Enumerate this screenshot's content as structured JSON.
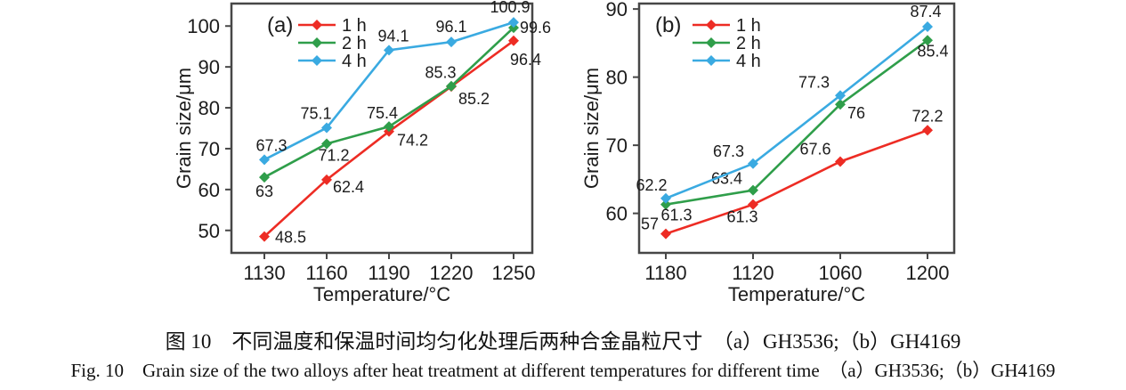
{
  "figure": {
    "caption_zh": "图 10　不同温度和保温时间均匀化处理后两种合金晶粒尺寸　（a）GH3536;（b）GH4169",
    "caption_en": "Fig. 10　Grain size of the two alloys after heat treatment at different temperatures for different time　（a）GH3536;（b）GH4169"
  },
  "colors": {
    "series_1h": "#ed2c24",
    "series_2h": "#2f9e4a",
    "series_4h": "#3aaae1",
    "axis": "#474747",
    "text": "#1c1c1c"
  },
  "chart_data": [
    {
      "type": "line",
      "panel_label": "(a)",
      "alloy": "GH3536",
      "xlabel": "Temperature/°C",
      "ylabel": "Grain size/μm",
      "categories": [
        "1130",
        "1160",
        "1190",
        "1220",
        "1250"
      ],
      "y_ticks": [
        50,
        60,
        70,
        80,
        90,
        100
      ],
      "ylim": [
        44.5,
        105.5
      ],
      "grid": false,
      "legend_position": "top-left",
      "series": [
        {
          "name": "1 h",
          "color_key": "series_1h",
          "values": [
            48.5,
            62.4,
            74.2,
            85.2,
            96.4
          ],
          "label_pos": [
            [
              "start",
              12,
              7
            ],
            [
              "start",
              7,
              14
            ],
            [
              "start",
              9,
              16
            ],
            [
              "start",
              8,
              20
            ],
            [
              "start",
              -4,
              27
            ]
          ]
        },
        {
          "name": "2 h",
          "color_key": "series_2h",
          "values": [
            63,
            71.2,
            75.4,
            85.3,
            99.6
          ],
          "label_pos": [
            [
              "middle",
              0,
              22
            ],
            [
              "middle",
              8,
              19
            ],
            [
              "end",
              10,
              -9
            ],
            [
              "middle",
              -12,
              -9
            ],
            [
              "start",
              7,
              6
            ]
          ]
        },
        {
          "name": "4 h",
          "color_key": "series_4h",
          "values": [
            67.3,
            75.1,
            94.1,
            96.1,
            100.9
          ],
          "label_pos": [
            [
              "middle",
              8,
              -10
            ],
            [
              "middle",
              -12,
              -10
            ],
            [
              "middle",
              5,
              -10
            ],
            [
              "middle",
              0,
              -11
            ],
            [
              "middle",
              -4,
              -11
            ]
          ]
        }
      ]
    },
    {
      "type": "line",
      "panel_label": "(b)",
      "alloy": "GH4169",
      "xlabel": "Temperature/°C",
      "ylabel": "Grain size/μm",
      "categories": [
        "1180",
        "1120",
        "1060",
        "1200"
      ],
      "y_ticks": [
        60,
        70,
        80,
        90
      ],
      "ylim": [
        54.2,
        90.8
      ],
      "grid": false,
      "legend_position": "top-left",
      "series": [
        {
          "name": "1 h",
          "color_key": "series_1h",
          "values": [
            57,
            61.3,
            67.6,
            72.2
          ],
          "label_pos": [
            [
              "end",
              -8,
              -5
            ],
            [
              "middle",
              -12,
              20
            ],
            [
              "middle",
              -28,
              -8
            ],
            [
              "middle",
              0,
              -10
            ]
          ]
        },
        {
          "name": "2 h",
          "color_key": "series_2h",
          "values": [
            61.3,
            63.4,
            76,
            85.4
          ],
          "label_pos": [
            [
              "middle",
              12,
              18
            ],
            [
              "end",
              -12,
              -7
            ],
            [
              "start",
              8,
              16
            ],
            [
              "middle",
              6,
              18
            ]
          ]
        },
        {
          "name": "4 h",
          "color_key": "series_4h",
          "values": [
            62.2,
            67.3,
            77.3,
            87.4
          ],
          "label_pos": [
            [
              "middle",
              -16,
              -9
            ],
            [
              "end",
              -10,
              -8
            ],
            [
              "end",
              -12,
              -9
            ],
            [
              "middle",
              -2,
              -11
            ]
          ]
        }
      ]
    }
  ]
}
